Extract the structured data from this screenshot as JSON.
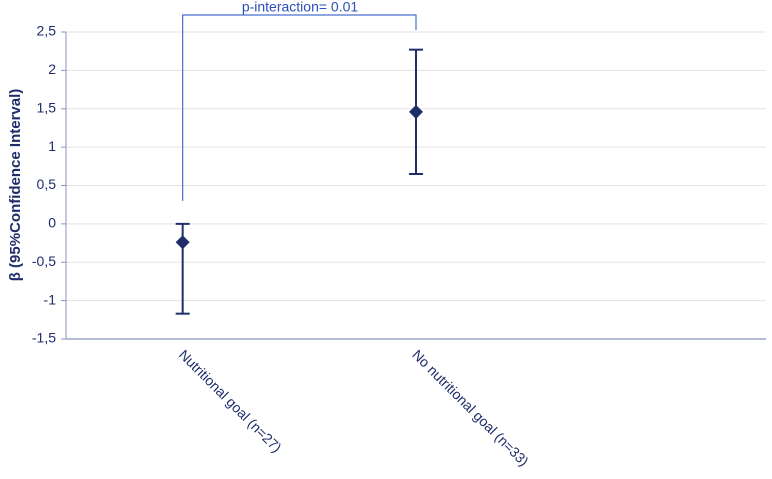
{
  "chart_data": {
    "type": "errorbar",
    "y_label": "β (95%Confidence Interval)",
    "annotation": "p-interaction= 0.01",
    "categories": [
      "Nutritional goal (n=27)",
      "No nutritional goal (n=33)",
      null
    ],
    "values": [
      -0.24,
      1.46,
      null
    ],
    "lower": [
      -1.17,
      0.65,
      null
    ],
    "upper": [
      0.0,
      2.27,
      null
    ],
    "color": "#1f2d6b",
    "bracket_color": "#4a6fd0",
    "ylim": [
      -1.5,
      2.5
    ],
    "yticks": [
      {
        "value": -1.5,
        "label": "-1,5"
      },
      -1,
      {
        "value": -0.5,
        "label": "-0,5"
      },
      0,
      {
        "value": 0.5,
        "label": "0,5"
      },
      1,
      {
        "value": 1.5,
        "label": "1,5"
      },
      2,
      {
        "value": 2.5,
        "label": "2,5"
      }
    ],
    "grid": true
  }
}
